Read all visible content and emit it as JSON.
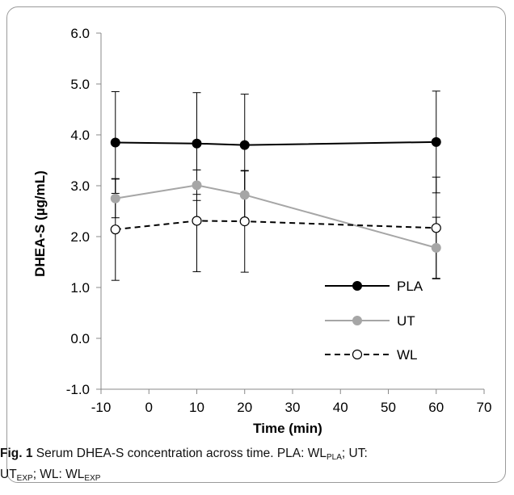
{
  "chart_data": {
    "type": "line",
    "title": "",
    "xlabel": "Time (min)",
    "ylabel": "DHEA-S (µg/mL)",
    "xlim": [
      -10,
      70
    ],
    "ylim": [
      -1.0,
      6.0
    ],
    "x_ticks": [
      "-10",
      "0",
      "10",
      "20",
      "30",
      "40",
      "50",
      "60",
      "70"
    ],
    "y_ticks": [
      "-1.0",
      "0.0",
      "1.0",
      "2.0",
      "3.0",
      "4.0",
      "5.0",
      "6.0"
    ],
    "grid": false,
    "legend_position": "lower-right",
    "x": [
      -7,
      10,
      20,
      60
    ],
    "series": [
      {
        "name": "PLA",
        "values": [
          3.85,
          3.83,
          3.8,
          3.86
        ],
        "error": [
          1.0,
          1.0,
          1.0,
          1.0
        ],
        "color": "#000000",
        "marker": "filled-circle",
        "line": "solid"
      },
      {
        "name": "UT",
        "values": [
          2.75,
          3.01,
          2.82,
          1.78
        ],
        "error": [
          0.38,
          0.3,
          0.47,
          0.6
        ],
        "color": "#a6a6a6",
        "marker": "filled-circle",
        "line": "solid"
      },
      {
        "name": "WL",
        "values": [
          2.14,
          2.31,
          2.3,
          2.17
        ],
        "error": [
          1.0,
          1.0,
          1.0,
          1.0
        ],
        "color": "#000000",
        "marker": "open-circle",
        "line": "dashed"
      }
    ]
  },
  "caption": {
    "fig_label": "Fig. 1",
    "text1": " Serum DHEA-S concentration across time. PLA: WL",
    "sub1": "PLA",
    "text2": "; UT:",
    "text3": "UT",
    "sub2": "EXP",
    "text4": "; WL: WL",
    "sub3": "EXP"
  }
}
